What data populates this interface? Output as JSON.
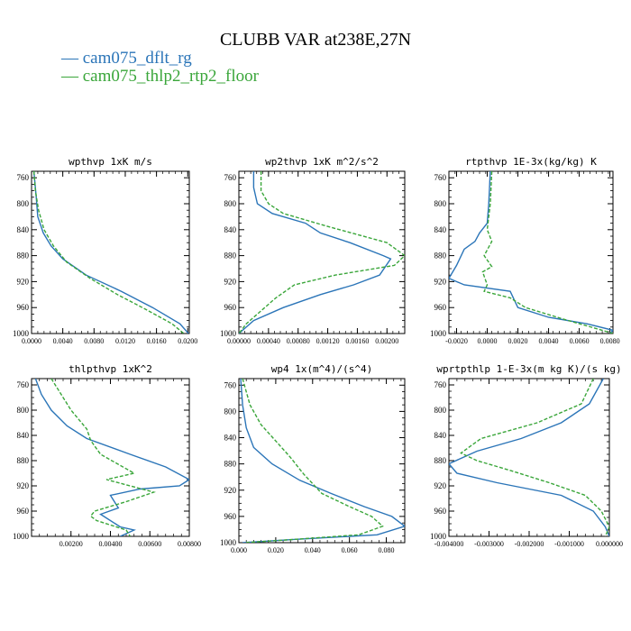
{
  "page": {
    "background": "#ffffff"
  },
  "chart_data": {
    "type": "line",
    "title": "CLUBB VAR at238E,27N",
    "legend": {
      "placement": "top-left",
      "entries": [
        {
          "name": "— cam075_dflt_rg",
          "color": "#2b75b8"
        },
        {
          "name": "— cam075_thlp2_rtp2_floor",
          "color": "#3aa63a"
        }
      ]
    },
    "y_axis": {
      "ticks": [
        760,
        800,
        840,
        880,
        920,
        960,
        1000
      ],
      "ylim": [
        1000,
        750
      ],
      "inverted": true
    },
    "panels": [
      {
        "title": "wpthvp  1xK m/s",
        "xlim": [
          0.0,
          0.0202
        ],
        "xticks": [
          0.0,
          0.004,
          0.008,
          0.012,
          0.016,
          0.02
        ],
        "xtick_labels": [
          "0.0000",
          "0.0040",
          "0.0080",
          "0.0120",
          "0.0160",
          "0.0200"
        ],
        "series": [
          {
            "name": "cam075_dflt_rg",
            "color": "#2b75b8",
            "dash": "",
            "points": [
              [
                0.0003,
                750
              ],
              [
                0.0006,
                790
              ],
              [
                0.0008,
                820
              ],
              [
                0.0015,
                845
              ],
              [
                0.0025,
                865
              ],
              [
                0.004,
                885
              ],
              [
                0.007,
                910
              ],
              [
                0.0115,
                935
              ],
              [
                0.0155,
                960
              ],
              [
                0.019,
                985
              ],
              [
                0.0201,
                1000
              ]
            ]
          },
          {
            "name": "cam075_thlp2_rtp2_floor",
            "color": "#3aa63a",
            "dash": "4,2",
            "points": [
              [
                0.0003,
                750
              ],
              [
                0.0005,
                780
              ],
              [
                0.0009,
                810
              ],
              [
                0.0016,
                840
              ],
              [
                0.0028,
                865
              ],
              [
                0.0045,
                890
              ],
              [
                0.0075,
                915
              ],
              [
                0.011,
                940
              ],
              [
                0.0145,
                962
              ],
              [
                0.018,
                985
              ],
              [
                0.0195,
                1000
              ]
            ]
          }
        ]
      },
      {
        "title": "wp2thvp  1xK m^2/s^2",
        "xlim": [
          0.0,
          0.00224
        ],
        "xticks": [
          0.0,
          0.0004,
          0.0008,
          0.0012,
          0.0016,
          0.002
        ],
        "xtick_labels": [
          "0.00000",
          "0.00040",
          "0.00080",
          "0.00120",
          "0.00160",
          "0.00200"
        ],
        "series": [
          {
            "name": "cam075_dflt_rg",
            "color": "#2b75b8",
            "dash": "",
            "points": [
              [
                0.0002,
                750
              ],
              [
                0.0002,
                775
              ],
              [
                0.00025,
                800
              ],
              [
                0.00045,
                815
              ],
              [
                0.0009,
                830
              ],
              [
                0.0011,
                845
              ],
              [
                0.0015,
                860
              ],
              [
                0.00195,
                880
              ],
              [
                0.00205,
                885
              ],
              [
                0.0019,
                910
              ],
              [
                0.00155,
                925
              ],
              [
                0.0011,
                940
              ],
              [
                0.0006,
                960
              ],
              [
                0.0002,
                980
              ],
              [
                0.0,
                1000
              ]
            ]
          },
          {
            "name": "cam075_thlp2_rtp2_floor",
            "color": "#3aa63a",
            "dash": "4,2",
            "points": [
              [
                0.0003,
                750
              ],
              [
                0.0003,
                780
              ],
              [
                0.0004,
                800
              ],
              [
                0.0006,
                815
              ],
              [
                0.0012,
                835
              ],
              [
                0.002,
                860
              ],
              [
                0.00224,
                880
              ],
              [
                0.0021,
                895
              ],
              [
                0.0013,
                910
              ],
              [
                0.00075,
                925
              ],
              [
                0.0005,
                945
              ],
              [
                0.0003,
                965
              ],
              [
                0.0001,
                985
              ],
              [
                0.0,
                1000
              ]
            ]
          }
        ]
      },
      {
        "title": "rtpthvp  1E-3x(kg/kg) K",
        "xlim": [
          -0.0025,
          0.0082
        ],
        "xticks": [
          -0.002,
          0.0,
          0.002,
          0.004,
          0.006,
          0.008
        ],
        "xtick_labels": [
          "-0.0020",
          "0.0000",
          "0.0020",
          "0.0040",
          "0.0060",
          "0.0080"
        ],
        "series": [
          {
            "name": "cam075_dflt_rg",
            "color": "#2b75b8",
            "dash": "",
            "points": [
              [
                0.0002,
                750
              ],
              [
                0.0001,
                800
              ],
              [
                0.0,
                830
              ],
              [
                -0.0005,
                845
              ],
              [
                -0.0008,
                858
              ],
              [
                -0.0015,
                870
              ],
              [
                -0.002,
                895
              ],
              [
                -0.0025,
                915
              ],
              [
                -0.0015,
                925
              ],
              [
                0.0015,
                935
              ],
              [
                0.002,
                960
              ],
              [
                0.004,
                975
              ],
              [
                0.0065,
                985
              ],
              [
                0.0082,
                995
              ],
              [
                0.008,
                1000
              ]
            ]
          },
          {
            "name": "cam075_thlp2_rtp2_floor",
            "color": "#3aa63a",
            "dash": "4,2",
            "points": [
              [
                0.0003,
                750
              ],
              [
                0.0002,
                800
              ],
              [
                0.0,
                840
              ],
              [
                0.0003,
                858
              ],
              [
                -0.0002,
                880
              ],
              [
                0.0003,
                897
              ],
              [
                -0.0003,
                905
              ],
              [
                0.0,
                925
              ],
              [
                -0.0002,
                935
              ],
              [
                0.0015,
                945
              ],
              [
                0.0025,
                960
              ],
              [
                0.005,
                978
              ],
              [
                0.0075,
                995
              ],
              [
                0.0082,
                1000
              ]
            ]
          }
        ]
      },
      {
        "title": "thlpthvp  1xK^2",
        "xlim": [
          0.0,
          0.008
        ],
        "xticks": [
          0.002,
          0.004,
          0.006,
          0.008
        ],
        "xtick_labels": [
          "0.00200",
          "0.00400",
          "0.00600",
          "0.00800"
        ],
        "series": [
          {
            "name": "cam075_dflt_rg",
            "color": "#2b75b8",
            "dash": "",
            "points": [
              [
                0.0002,
                750
              ],
              [
                0.0005,
                775
              ],
              [
                0.001,
                800
              ],
              [
                0.0018,
                825
              ],
              [
                0.0028,
                845
              ],
              [
                0.005,
                870
              ],
              [
                0.0068,
                890
              ],
              [
                0.008,
                910
              ],
              [
                0.0075,
                920
              ],
              [
                0.0055,
                925
              ],
              [
                0.004,
                935
              ],
              [
                0.0044,
                955
              ],
              [
                0.0035,
                965
              ],
              [
                0.0045,
                985
              ],
              [
                0.0052,
                990
              ],
              [
                0.0045,
                1000
              ]
            ]
          },
          {
            "name": "cam075_thlp2_rtp2_floor",
            "color": "#3aa63a",
            "dash": "4,2",
            "points": [
              [
                0.001,
                750
              ],
              [
                0.002,
                800
              ],
              [
                0.0028,
                830
              ],
              [
                0.003,
                848
              ],
              [
                0.0035,
                870
              ],
              [
                0.0052,
                900
              ],
              [
                0.0038,
                910
              ],
              [
                0.0062,
                930
              ],
              [
                0.0048,
                945
              ],
              [
                0.0032,
                960
              ],
              [
                0.003,
                968
              ],
              [
                0.0033,
                975
              ],
              [
                0.0048,
                990
              ],
              [
                0.005,
                1000
              ]
            ]
          }
        ]
      },
      {
        "title": "wp4  1x(m^4)/(s^4)",
        "xlim": [
          0.0,
          0.09
        ],
        "xticks": [
          0.0,
          0.02,
          0.04,
          0.06,
          0.08
        ],
        "xtick_labels": [
          "0.000",
          "0.020",
          "0.040",
          "0.060",
          "0.080"
        ],
        "series": [
          {
            "name": "cam075_dflt_rg",
            "color": "#2b75b8",
            "dash": "",
            "points": [
              [
                0.001,
                750
              ],
              [
                0.002,
                790
              ],
              [
                0.004,
                825
              ],
              [
                0.008,
                855
              ],
              [
                0.018,
                880
              ],
              [
                0.033,
                905
              ],
              [
                0.05,
                925
              ],
              [
                0.068,
                945
              ],
              [
                0.083,
                960
              ],
              [
                0.09,
                975
              ],
              [
                0.075,
                988
              ],
              [
                0.03,
                995
              ],
              [
                0.002,
                1000
              ]
            ]
          },
          {
            "name": "cam075_thlp2_rtp2_floor",
            "color": "#3aa63a",
            "dash": "4,2",
            "points": [
              [
                0.002,
                750
              ],
              [
                0.006,
                790
              ],
              [
                0.012,
                820
              ],
              [
                0.02,
                845
              ],
              [
                0.028,
                870
              ],
              [
                0.035,
                895
              ],
              [
                0.045,
                925
              ],
              [
                0.06,
                945
              ],
              [
                0.072,
                960
              ],
              [
                0.078,
                975
              ],
              [
                0.065,
                988
              ],
              [
                0.03,
                995
              ],
              [
                0.003,
                1000
              ]
            ]
          }
        ]
      },
      {
        "title": "wprtpthlp  1-E-3x(m kg K)/(s kg)",
        "xlim": [
          -0.004,
          0.0
        ],
        "xticks": [
          -0.004,
          -0.003,
          -0.002,
          -0.001,
          0.0
        ],
        "xtick_labels": [
          "-0.004000",
          "-0.003000",
          "-0.002000",
          "-0.001000",
          "0.000000"
        ],
        "series": [
          {
            "name": "cam075_dflt_rg",
            "color": "#2b75b8",
            "dash": "",
            "points": [
              [
                -0.00015,
                750
              ],
              [
                -0.0005,
                790
              ],
              [
                -0.0012,
                820
              ],
              [
                -0.0022,
                845
              ],
              [
                -0.0033,
                865
              ],
              [
                -0.004,
                885
              ],
              [
                -0.0038,
                900
              ],
              [
                -0.0028,
                915
              ],
              [
                -0.0012,
                935
              ],
              [
                -0.0004,
                960
              ],
              [
                -0.0001,
                985
              ],
              [
                0.0,
                1000
              ]
            ]
          },
          {
            "name": "cam075_thlp2_rtp2_floor",
            "color": "#3aa63a",
            "dash": "4,2",
            "points": [
              [
                -0.0004,
                750
              ],
              [
                -0.0007,
                790
              ],
              [
                -0.0018,
                820
              ],
              [
                -0.0032,
                845
              ],
              [
                -0.0037,
                868
              ],
              [
                -0.0033,
                880
              ],
              [
                -0.0025,
                895
              ],
              [
                -0.0015,
                915
              ],
              [
                -0.0006,
                935
              ],
              [
                -0.0002,
                960
              ],
              [
                0.0,
                985
              ],
              [
                -0.0001,
                1000
              ]
            ]
          }
        ]
      }
    ]
  }
}
